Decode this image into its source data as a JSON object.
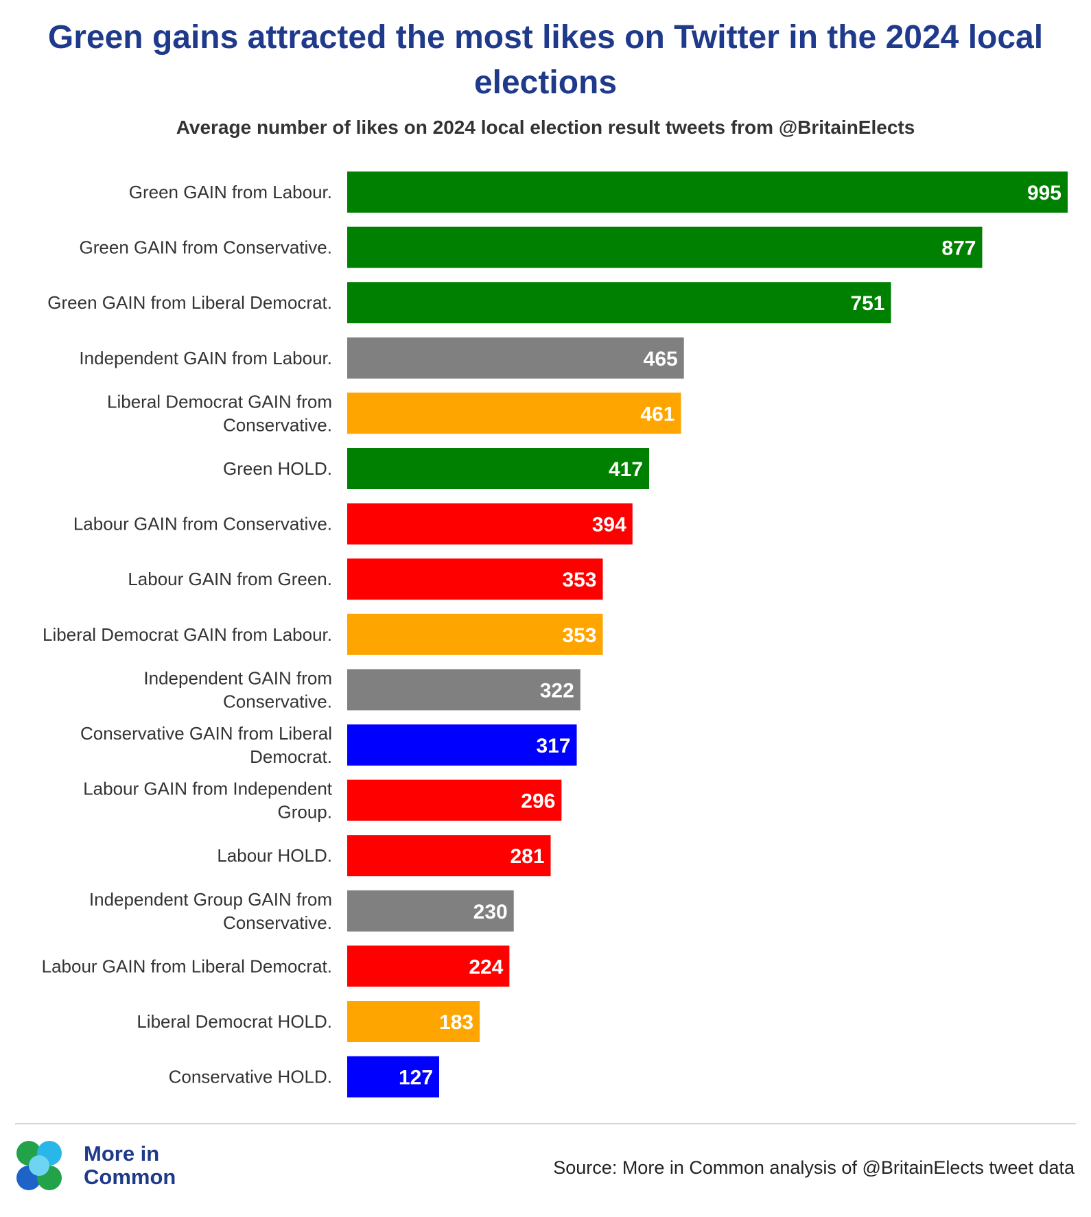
{
  "header": {
    "title": "Green gains attracted the most likes on Twitter in the 2024 local elections",
    "subtitle": "Average number of likes on 2024 local election result tweets from @BritainElects"
  },
  "chart_data": {
    "type": "bar",
    "orientation": "horizontal",
    "title": "Green gains attracted the most likes on Twitter in the 2024 local elections",
    "subtitle": "Average number of likes on 2024 local election result tweets from @BritainElects",
    "xlabel": "",
    "ylabel": "",
    "xlim": [
      0,
      995
    ],
    "grid": false,
    "data_labels": true,
    "categories": [
      [
        "Green GAIN from Labour."
      ],
      [
        "Green GAIN from Conservative."
      ],
      [
        "Green GAIN from Liberal Democrat."
      ],
      [
        "Independent GAIN from Labour."
      ],
      [
        "Liberal Democrat GAIN from",
        "Conservative."
      ],
      [
        "Green HOLD."
      ],
      [
        "Labour GAIN from Conservative."
      ],
      [
        "Labour GAIN from Green."
      ],
      [
        "Liberal Democrat GAIN from Labour."
      ],
      [
        "Independent GAIN from",
        "Conservative."
      ],
      [
        "Conservative GAIN from Liberal",
        "Democrat."
      ],
      [
        "Labour GAIN from Independent",
        "Group."
      ],
      [
        "Labour HOLD."
      ],
      [
        "Independent Group GAIN from",
        "Conservative."
      ],
      [
        "Labour GAIN from Liberal Democrat."
      ],
      [
        "Liberal Democrat HOLD."
      ],
      [
        "Conservative HOLD."
      ]
    ],
    "values": [
      995,
      877,
      751,
      465,
      461,
      417,
      394,
      353,
      353,
      322,
      317,
      296,
      281,
      230,
      224,
      183,
      127
    ],
    "colors": [
      "#008000",
      "#008000",
      "#008000",
      "#808080",
      "#ffa500",
      "#008000",
      "#ff0000",
      "#ff0000",
      "#ffa500",
      "#808080",
      "#0000ff",
      "#ff0000",
      "#ff0000",
      "#808080",
      "#ff0000",
      "#ffa500",
      "#0000ff"
    ],
    "label_color": "#ffffff"
  },
  "footer": {
    "logo_line1": "More in",
    "logo_line2": "Common",
    "source": "Source: More in Common analysis of @BritainElects tweet data"
  },
  "brand_colors": {
    "title": "#1f3a8a",
    "logo_green": "#22a34a",
    "logo_cyan": "#29b6e8",
    "logo_blue": "#1e63c8"
  }
}
